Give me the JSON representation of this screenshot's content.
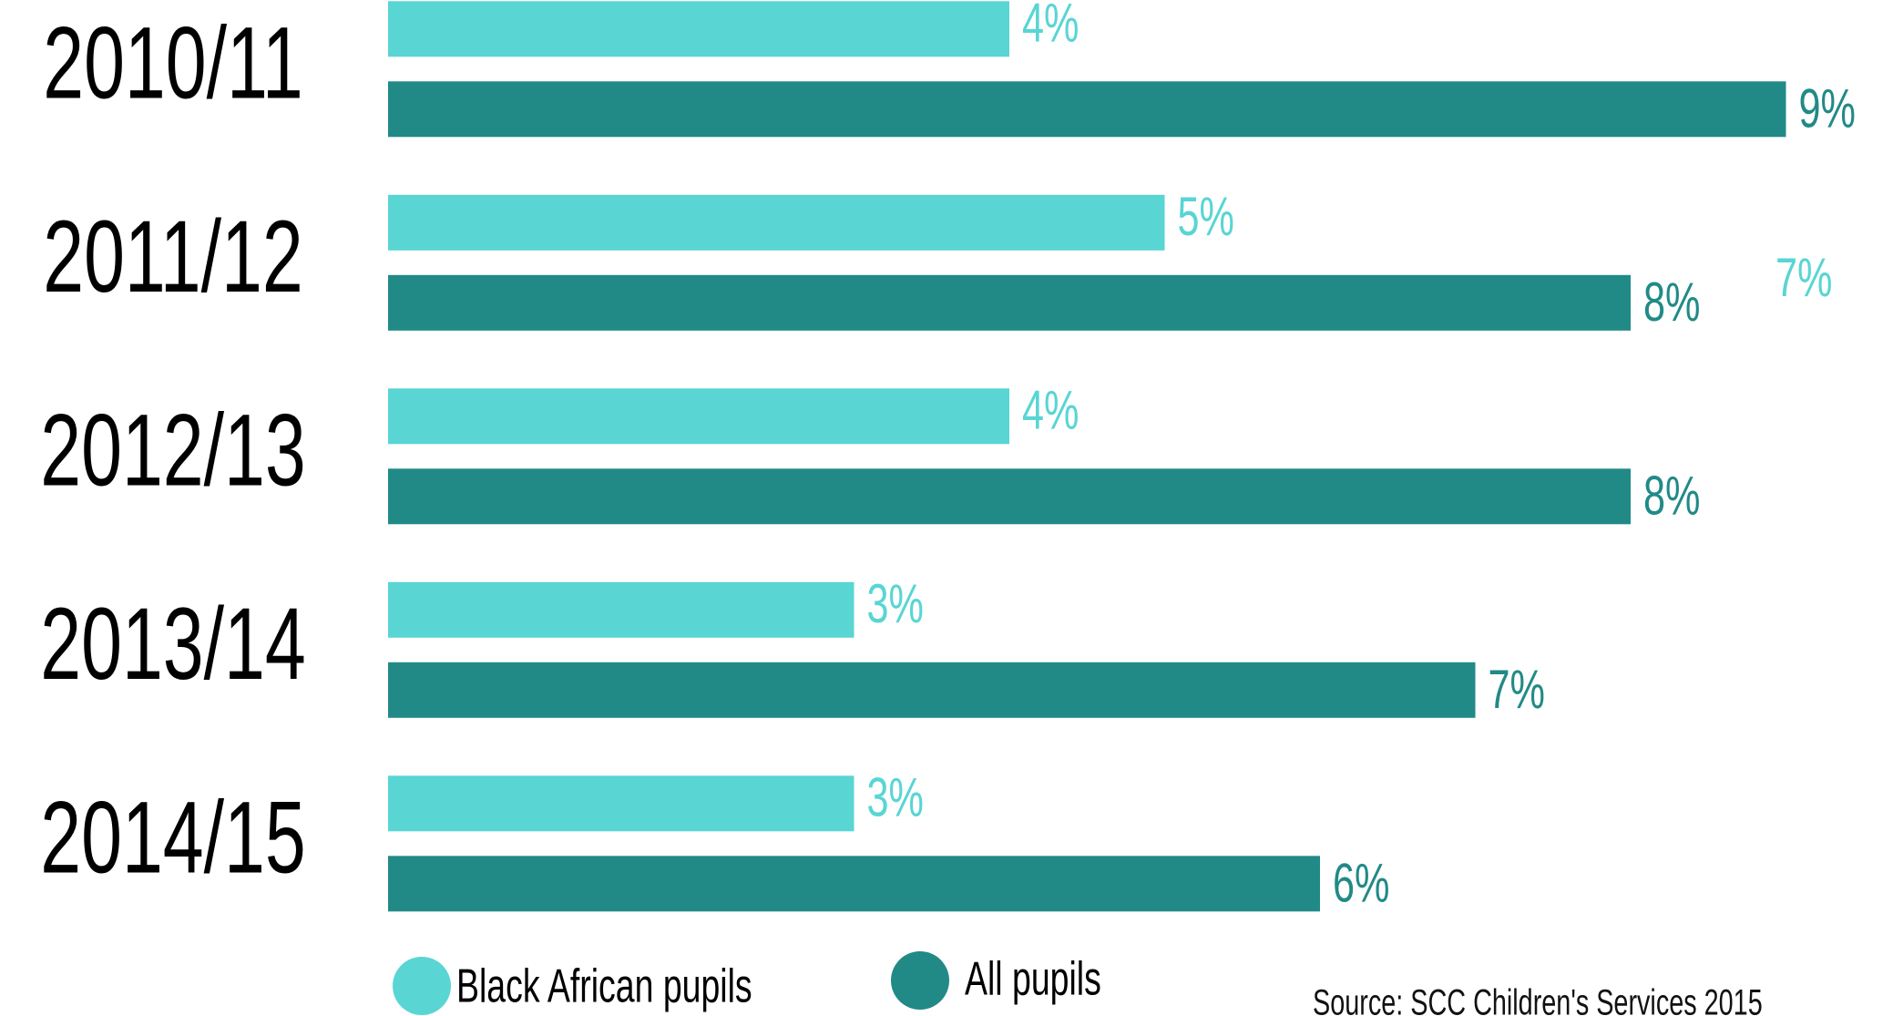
{
  "chart_data": {
    "type": "hbar",
    "categories": [
      "2010/11",
      "2011/12",
      "2012/13",
      "2013/14",
      "2014/15"
    ],
    "series": [
      {
        "name": "Black African pupils",
        "color": "#59d5d4",
        "values": [
          4,
          5,
          4,
          3,
          3
        ],
        "value_labels": [
          "4%",
          "5%",
          "4%",
          "3%",
          "3%"
        ]
      },
      {
        "name": "All pupils",
        "color": "#218a87",
        "values": [
          9,
          8,
          8,
          7,
          6
        ],
        "value_labels": [
          "9%",
          "8%",
          "8%",
          "7%",
          "6%"
        ]
      }
    ],
    "xlim": [
      0,
      10
    ],
    "annotation": "7%",
    "source": "Source: SCC Children's Services 2015"
  }
}
